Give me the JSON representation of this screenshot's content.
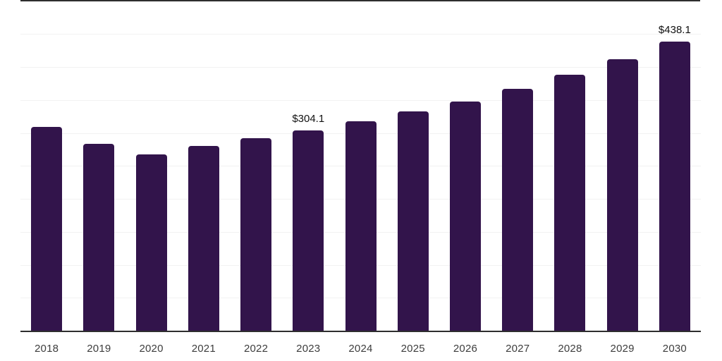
{
  "chart_data": {
    "type": "bar",
    "title": "",
    "xlabel": "",
    "ylabel": "",
    "categories": [
      "2018",
      "2019",
      "2020",
      "2021",
      "2022",
      "2023",
      "2024",
      "2025",
      "2026",
      "2027",
      "2028",
      "2029",
      "2030"
    ],
    "values": [
      308.7,
      283.9,
      267.1,
      280.7,
      292.3,
      304.1,
      317.2,
      333.0,
      347.9,
      367.1,
      388.4,
      411.6,
      438.1
    ],
    "data_labels": [
      {
        "category": "2023",
        "text": "$304.1"
      },
      {
        "category": "2030",
        "text": "$438.1"
      }
    ],
    "ylim": [
      0,
      500
    ],
    "grid_step": 50,
    "grid": "horizontal-faint",
    "legend": "none",
    "value_prefix": "$"
  },
  "colors": {
    "bar": "#32144B",
    "background": "#ffffff",
    "gridline": "#f2f2f2",
    "axis_line": "#2e2e2e",
    "top_border": "#2e2e2e",
    "tick_label": "#3d3d3d",
    "data_label": "#111111"
  }
}
